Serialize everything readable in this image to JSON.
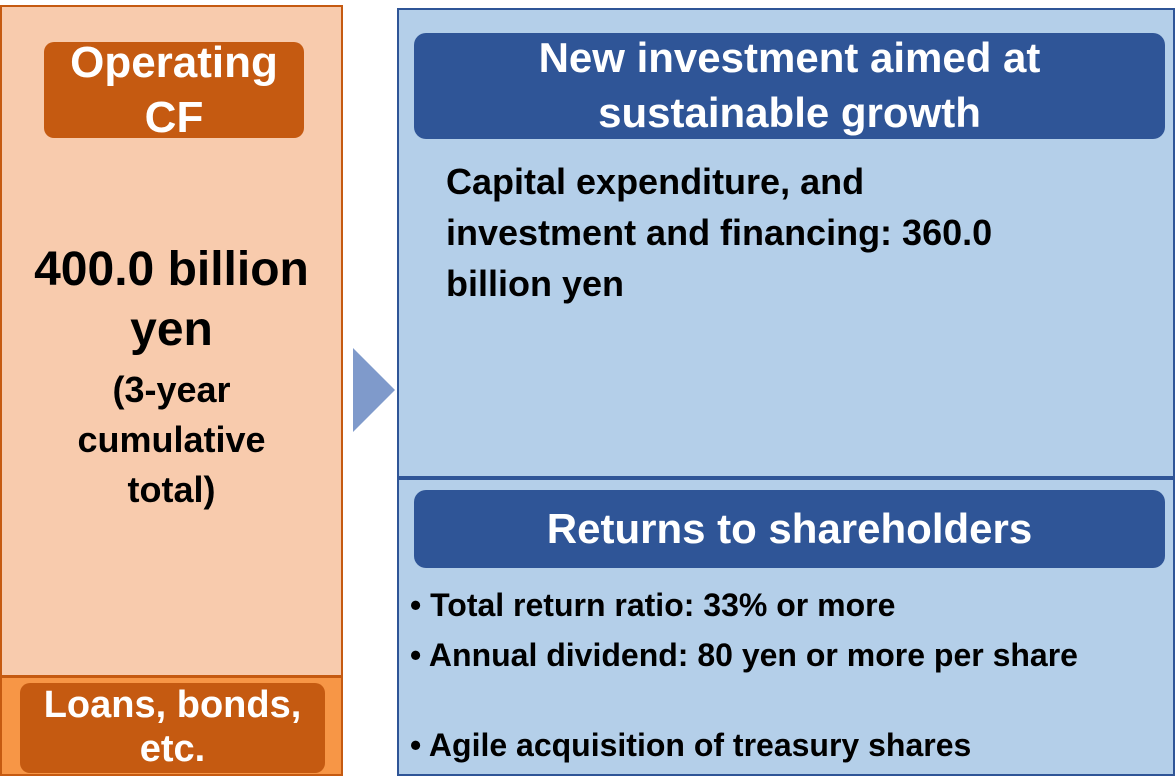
{
  "left": {
    "header": "Operating CF",
    "amount": "400.0 billion yen",
    "note": "(3-year cumulative total)",
    "footer": "Loans, bonds, etc."
  },
  "investment": {
    "header": "New investment aimed at sustainable growth",
    "body": "Capital expenditure, and investment and financing: 360.0 billion yen"
  },
  "returns": {
    "header": "Returns to shareholders",
    "bullets": [
      "Total return ratio: 33% or more",
      "Annual dividend: 80 yen or more per share",
      "Agile acquisition of treasury shares"
    ]
  }
}
